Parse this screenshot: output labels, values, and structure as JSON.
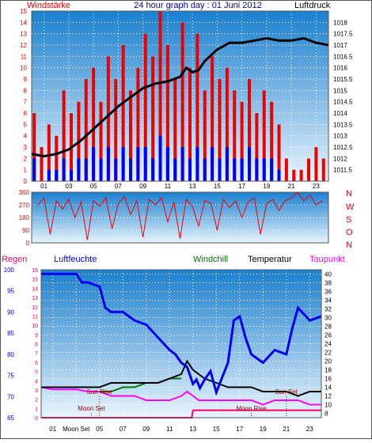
{
  "colors": {
    "frame": "#555555",
    "plot_top": "#1a80d0",
    "plot_bottom": "#e8f4fc",
    "grid": "#ffffff",
    "wind": "#ee0000",
    "gust": "#0000ff",
    "pressure": "#000000",
    "direction": "#ee0000",
    "humidity": "#0000ee",
    "temperature": "#000000",
    "windchill": "#007700",
    "dewpoint": "#ff00ff",
    "rain": "#ff0066",
    "annot": "#990000",
    "axis_text": "#000000",
    "title_text": "#0000aa"
  },
  "chart_data": [
    {
      "id": "wind-pressure",
      "type": "bar",
      "title": "24 hour graph day : 01 Juni 2012",
      "left_label": "Windstärke",
      "right_label": "Luftdruck",
      "x_ticks": [
        "01",
        "03",
        "05",
        "07",
        "09",
        "11",
        "13",
        "15",
        "17",
        "19",
        "21",
        "23"
      ],
      "x_range": [
        0,
        24
      ],
      "y_left_range": [
        0,
        15
      ],
      "y_left_ticks": [
        0,
        1,
        2,
        3,
        4,
        5,
        6,
        7,
        8,
        9,
        10,
        11,
        12,
        13,
        14,
        15
      ],
      "y_right_range": [
        1011,
        1018.5
      ],
      "y_right_ticks": [
        1011.5,
        1012,
        1012.5,
        1013,
        1013.5,
        1014,
        1014.5,
        1015,
        1015.5,
        1016,
        1016.5,
        1017,
        1017.5,
        1018
      ],
      "grid": true,
      "series": [
        {
          "key": "wind_gust",
          "x": [
            0.2,
            0.8,
            1.4,
            2.0,
            2.6,
            3.2,
            3.8,
            4.4,
            5.0,
            5.6,
            6.2,
            6.8,
            7.4,
            8.0,
            8.6,
            9.2,
            9.8,
            10.4,
            11.0,
            11.6,
            12.2,
            12.8,
            13.4,
            14.0,
            14.6,
            15.2,
            15.8,
            16.4,
            17.0,
            17.6,
            18.2,
            18.8,
            19.4,
            20.0,
            20.6,
            21.2,
            21.8,
            22.4,
            23.0,
            23.6
          ],
          "values": [
            6,
            3,
            5,
            4,
            8,
            6,
            7,
            9,
            10,
            7,
            11,
            9,
            12,
            8,
            10,
            13,
            11,
            15,
            12,
            9,
            14,
            10,
            13,
            8,
            11,
            9,
            10,
            8,
            7,
            9,
            6,
            8,
            7,
            5,
            2,
            1,
            1,
            2,
            3,
            2
          ]
        },
        {
          "key": "wind_avg",
          "x": [
            0.2,
            0.8,
            1.4,
            2.0,
            2.6,
            3.2,
            3.8,
            4.4,
            5.0,
            5.6,
            6.2,
            6.8,
            7.4,
            8.0,
            8.6,
            9.2,
            9.8,
            10.4,
            11.0,
            11.6,
            12.2,
            12.8,
            13.4,
            14.0,
            14.6,
            15.2,
            15.8,
            16.4,
            17.0,
            17.6,
            18.2,
            18.8,
            19.4,
            20.0,
            20.6,
            21.2,
            21.8,
            22.4,
            23.0,
            23.6
          ],
          "values": [
            2,
            0,
            1,
            1,
            2,
            1,
            2,
            2,
            3,
            2,
            3,
            2,
            3,
            2,
            3,
            3,
            2,
            4,
            3,
            2,
            3,
            2,
            3,
            2,
            3,
            2,
            3,
            2,
            2,
            3,
            2,
            2,
            2,
            1,
            0,
            0,
            0,
            0,
            0,
            0
          ]
        },
        {
          "key": "pressure",
          "axis": "right",
          "x": [
            0,
            1,
            2,
            3,
            4,
            5,
            6,
            7,
            8,
            9,
            10,
            11,
            12,
            12.5,
            13,
            13.5,
            14,
            15,
            16,
            17,
            18,
            19,
            20,
            21,
            22,
            23,
            24
          ],
          "values": [
            1012.2,
            1012.1,
            1012.2,
            1012.4,
            1012.8,
            1013.3,
            1013.8,
            1014.3,
            1014.7,
            1015.1,
            1015.3,
            1015.4,
            1015.6,
            1016.0,
            1015.8,
            1015.9,
            1016.3,
            1016.8,
            1017.1,
            1017.1,
            1017.2,
            1017.3,
            1017.2,
            1017.2,
            1017.3,
            1017.1,
            1017.0
          ]
        }
      ]
    },
    {
      "id": "wind-direction",
      "type": "line",
      "y_range": [
        0,
        360
      ],
      "y_ticks": [
        0,
        90,
        180,
        270,
        360
      ],
      "right_labels": [
        "N",
        "W",
        "S",
        "O",
        "N"
      ],
      "x_range": [
        0,
        24
      ],
      "grid": true,
      "series": [
        {
          "key": "direction",
          "x": [
            0.5,
            1,
            1.5,
            2,
            2.5,
            3,
            3.5,
            4,
            4.5,
            5,
            5.5,
            6,
            6.5,
            7,
            7.5,
            8,
            8.5,
            9,
            9.5,
            10,
            10.5,
            11,
            11.5,
            12,
            12.5,
            13,
            13.5,
            14,
            14.5,
            15,
            15.5,
            16,
            16.5,
            17,
            17.5,
            18,
            18.5,
            19,
            19.5,
            20,
            20.5,
            21,
            21.5,
            22,
            22.5,
            23,
            23.5
          ],
          "values": [
            270,
            320,
            60,
            300,
            240,
            310,
            180,
            290,
            20,
            300,
            260,
            320,
            100,
            280,
            330,
            200,
            300,
            40,
            310,
            270,
            320,
            150,
            290,
            30,
            310,
            260,
            120,
            300,
            280,
            90,
            310,
            250,
            300,
            180,
            290,
            320,
            60,
            280,
            310,
            230,
            300,
            320,
            360,
            300,
            340,
            270,
            300
          ]
        }
      ]
    },
    {
      "id": "humidity-temperature",
      "type": "line",
      "labels": {
        "rain": "Regen",
        "humidity": "Luftfeuchte",
        "windchill": "Windchill",
        "temperature": "Temperatur",
        "dewpoint": "Taupunkt"
      },
      "x_ticks": [
        "01",
        "Moon Set",
        "05",
        "07",
        "09",
        "11",
        "13",
        "15",
        "17",
        "19",
        "21",
        "23"
      ],
      "x_range": [
        0,
        24
      ],
      "rain_range": [
        0,
        16
      ],
      "rain_ticks": [
        0,
        1,
        2,
        3,
        4,
        5,
        6,
        7,
        8,
        9,
        10,
        11,
        12,
        13,
        14,
        15,
        16
      ],
      "humidity_range": [
        65,
        100
      ],
      "humidity_ticks": [
        65,
        70,
        75,
        80,
        85,
        90,
        95,
        100
      ],
      "temperature_range": [
        7,
        41
      ],
      "temperature_ticks": [
        8,
        10,
        12,
        14,
        16,
        18,
        20,
        22,
        24,
        26,
        28,
        30,
        32,
        34,
        36,
        38,
        40
      ],
      "annotations": [
        {
          "text": "Moon Set",
          "x": 4.3,
          "row": "bottom"
        },
        {
          "text": "Sun Rise",
          "x": 5.0,
          "row": "middle"
        },
        {
          "text": "Moon Rise",
          "x": 18.0,
          "row": "bottom"
        },
        {
          "text": "Sun Set",
          "x": 21.0,
          "row": "middle"
        }
      ],
      "grid": true,
      "series": [
        {
          "key": "humidity",
          "axis": "humidity",
          "x": [
            0,
            1,
            2,
            3,
            3.5,
            4,
            5,
            5.5,
            6,
            7,
            8,
            9,
            10,
            11,
            11.5,
            12,
            12.5,
            13,
            13.3,
            13.6,
            14,
            14.5,
            15,
            16,
            16.5,
            17,
            17.5,
            18,
            19,
            20,
            21,
            21.5,
            22,
            23,
            24
          ],
          "values": [
            99,
            99,
            99,
            99,
            97,
            97,
            96,
            91,
            90,
            90,
            88,
            87,
            84,
            81,
            80,
            78,
            77,
            73,
            74,
            72,
            74,
            76,
            71,
            78,
            88,
            89,
            84,
            80,
            78,
            81,
            80,
            86,
            91,
            88,
            89
          ]
        },
        {
          "key": "temperature",
          "axis": "temperature",
          "x": [
            0,
            1,
            2,
            3,
            4,
            5,
            6,
            7,
            8,
            9,
            10,
            11,
            12,
            12.5,
            13,
            13.5,
            14,
            15,
            16,
            17,
            18,
            19,
            20,
            21,
            22,
            23,
            24
          ],
          "values": [
            14,
            14,
            14,
            14,
            14,
            14,
            15,
            15,
            15,
            15,
            15,
            16,
            17,
            20,
            18,
            17,
            16,
            15,
            14,
            14,
            14,
            13,
            13,
            13,
            12,
            13,
            13
          ]
        },
        {
          "key": "windchill",
          "axis": "temperature",
          "x": [
            5,
            6,
            7,
            8,
            9,
            10,
            11,
            12
          ],
          "values": [
            13,
            13,
            14,
            14,
            15,
            15,
            16,
            16
          ]
        },
        {
          "key": "dewpoint",
          "axis": "temperature",
          "x": [
            0,
            1,
            2,
            3,
            4,
            5,
            6,
            7,
            8,
            9,
            10,
            11,
            12,
            12.5,
            13,
            13.5,
            14,
            15,
            16,
            17,
            18,
            19,
            20,
            21,
            22,
            23,
            24
          ],
          "values": [
            14,
            13.5,
            13.5,
            13.5,
            13,
            13,
            12,
            12,
            12,
            11,
            11,
            11,
            12,
            13,
            12,
            11,
            11,
            11,
            11,
            11,
            11,
            10,
            11,
            11,
            11,
            10,
            10
          ]
        },
        {
          "key": "rain",
          "axis": "rain",
          "x": [
            0,
            12.9,
            13.0,
            13.3,
            24
          ],
          "values": [
            0,
            0,
            0.8,
            0.8,
            0.8
          ]
        }
      ]
    }
  ]
}
